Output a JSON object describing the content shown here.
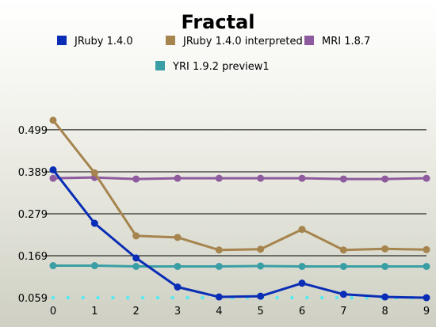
{
  "chart_data": {
    "type": "line",
    "title": "Fractal",
    "xlabel": "",
    "ylabel": "",
    "x": [
      0,
      1,
      2,
      3,
      4,
      5,
      6,
      7,
      8,
      9
    ],
    "x_tick_labels": [
      "0",
      "1",
      "2",
      "3",
      "4",
      "5",
      "6",
      "7",
      "8",
      "9"
    ],
    "y_ticks": [
      0.059,
      0.169,
      0.279,
      0.389,
      0.499
    ],
    "y_tick_labels": [
      "0.059",
      "0.169",
      "0.279",
      "0.389",
      "0.499"
    ],
    "xlim": [
      0,
      9
    ],
    "ylim": [
      0.059,
      0.559
    ],
    "grid": "horizontal",
    "legend_position": "top",
    "series": [
      {
        "name": "JRuby 1.4.0",
        "color": "#0a2db5",
        "values": [
          0.394,
          0.254,
          0.163,
          0.087,
          0.061,
          0.063,
          0.097,
          0.068,
          0.061,
          0.059
        ]
      },
      {
        "name": "JRuby 1.4.0 interpreted",
        "color": "#a6844e",
        "values": [
          0.524,
          0.386,
          0.221,
          0.217,
          0.184,
          0.186,
          0.238,
          0.184,
          0.187,
          0.185
        ]
      },
      {
        "name": "MRI 1.8.7",
        "color": "#8e5b9e",
        "values": [
          0.372,
          0.374,
          0.37,
          0.372,
          0.372,
          0.372,
          0.372,
          0.37,
          0.37,
          0.372
        ]
      },
      {
        "name": "YRI 1.9.2 preview1",
        "color": "#3a9ea5",
        "values": [
          0.143,
          0.143,
          0.141,
          0.141,
          0.141,
          0.142,
          0.141,
          0.141,
          0.141,
          0.141
        ]
      }
    ],
    "baseline_dots_color": "#5ee8f0"
  }
}
